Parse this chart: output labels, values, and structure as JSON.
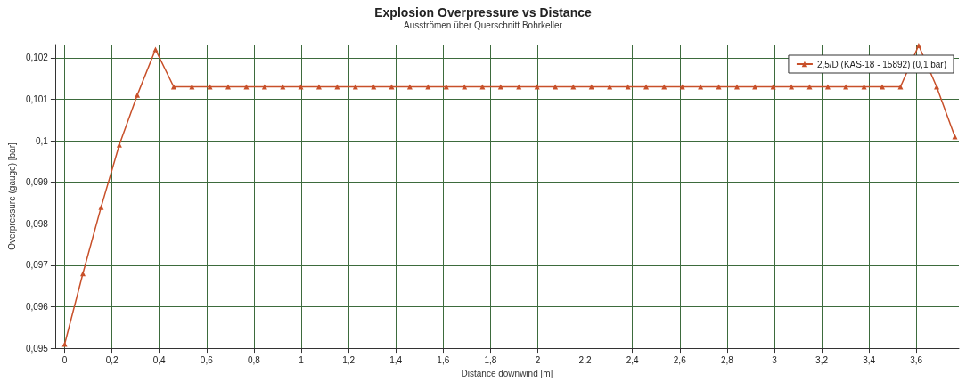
{
  "chart_data": {
    "type": "line",
    "title": "Explosion Overpressure vs Distance",
    "subtitle": "Ausströmen über Querschnitt Bohrkeller",
    "xlabel": "Distance downwind [m]",
    "ylabel": "Overpressure (gauge) [bar]",
    "xlim": [
      -0.04,
      3.78
    ],
    "xticks": [
      {
        "value": 0,
        "label": "0"
      },
      {
        "value": 0.2,
        "label": "0,2"
      },
      {
        "value": 0.4,
        "label": "0,4"
      },
      {
        "value": 0.6,
        "label": "0,6"
      },
      {
        "value": 0.8,
        "label": "0,8"
      },
      {
        "value": 1,
        "label": "1"
      },
      {
        "value": 1.2,
        "label": "1,2"
      },
      {
        "value": 1.4,
        "label": "1,4"
      },
      {
        "value": 1.6,
        "label": "1,6"
      },
      {
        "value": 1.8,
        "label": "1,8"
      },
      {
        "value": 2,
        "label": "2"
      },
      {
        "value": 2.2,
        "label": "2,2"
      },
      {
        "value": 2.4,
        "label": "2,4"
      },
      {
        "value": 2.6,
        "label": "2,6"
      },
      {
        "value": 2.8,
        "label": "2,8"
      },
      {
        "value": 3,
        "label": "3"
      },
      {
        "value": 3.2,
        "label": "3,2"
      },
      {
        "value": 3.4,
        "label": "3,4"
      },
      {
        "value": 3.6,
        "label": "3,6"
      }
    ],
    "ylim": [
      0.095,
      0.10232
    ],
    "yticks": [
      {
        "value": 0.095,
        "label": "0,095"
      },
      {
        "value": 0.096,
        "label": "0,096"
      },
      {
        "value": 0.097,
        "label": "0,097"
      },
      {
        "value": 0.098,
        "label": "0,098"
      },
      {
        "value": 0.099,
        "label": "0,099"
      },
      {
        "value": 0.1,
        "label": "0,1"
      },
      {
        "value": 0.101,
        "label": "0,101"
      },
      {
        "value": 0.102,
        "label": "0,102"
      }
    ],
    "x": [
      0,
      0.077,
      0.154,
      0.231,
      0.307,
      0.384,
      0.461,
      0.538,
      0.614,
      0.691,
      0.768,
      0.845,
      0.922,
      0.998,
      1.075,
      1.152,
      1.229,
      1.306,
      1.382,
      1.459,
      1.536,
      1.613,
      1.69,
      1.766,
      1.843,
      1.92,
      1.997,
      2.074,
      2.15,
      2.227,
      2.304,
      2.381,
      2.458,
      2.534,
      2.611,
      2.688,
      2.765,
      2.842,
      2.918,
      2.995,
      3.072,
      3.149,
      3.226,
      3.302,
      3.379,
      3.456,
      3.533,
      3.61,
      3.686,
      3.763
    ],
    "series": [
      {
        "name": "2,5/D (KAS-18 - 15892) (0,1 bar)",
        "color": "#c8502a",
        "values": [
          0.0951,
          0.0968,
          0.0984,
          0.0999,
          0.1011,
          0.1022,
          0.1013,
          0.1013,
          0.1013,
          0.1013,
          0.1013,
          0.1013,
          0.1013,
          0.1013,
          0.1013,
          0.1013,
          0.1013,
          0.1013,
          0.1013,
          0.1013,
          0.1013,
          0.1013,
          0.1013,
          0.1013,
          0.1013,
          0.1013,
          0.1013,
          0.1013,
          0.1013,
          0.1013,
          0.1013,
          0.1013,
          0.1013,
          0.1013,
          0.1013,
          0.1013,
          0.1013,
          0.1013,
          0.1013,
          0.1013,
          0.1013,
          0.1013,
          0.1013,
          0.1013,
          0.1013,
          0.1013,
          0.1013,
          0.1023,
          0.1013,
          0.1001
        ]
      }
    ],
    "grid": true,
    "legend": "top right",
    "marker": "triangle",
    "line_style": "solid"
  }
}
